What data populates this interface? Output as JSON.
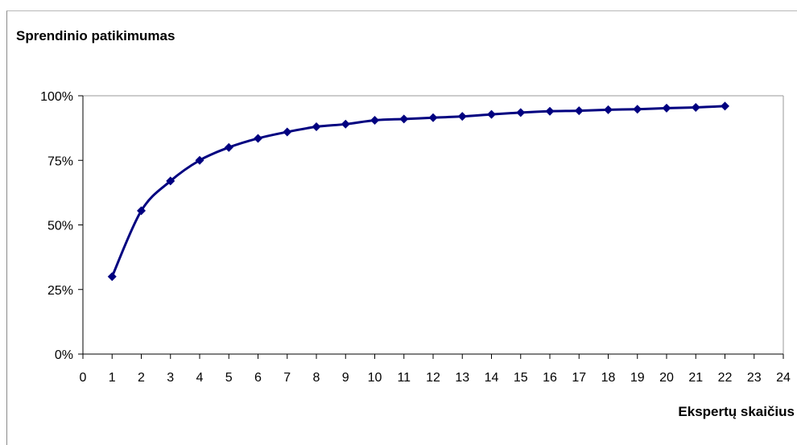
{
  "chart_data": {
    "type": "line",
    "title": "Sprendinio patikimumas",
    "xlabel": "Ekspertų skaičius",
    "ylabel": "",
    "x_ticks": [
      "0",
      "1",
      "2",
      "3",
      "4",
      "5",
      "6",
      "7",
      "8",
      "9",
      "10",
      "11",
      "12",
      "13",
      "14",
      "15",
      "16",
      "17",
      "18",
      "19",
      "20",
      "21",
      "22",
      "23",
      "24"
    ],
    "y_ticks": [
      "0%",
      "25%",
      "50%",
      "75%",
      "100%"
    ],
    "xlim": [
      0,
      24
    ],
    "ylim": [
      0,
      100
    ],
    "grid": false,
    "marker": "diamond",
    "color": "#000080",
    "series": [
      {
        "x": [
          1,
          2,
          3,
          4,
          5,
          6,
          7,
          8,
          9,
          10,
          11,
          12,
          13,
          14,
          15,
          16,
          17,
          18,
          19,
          20,
          21,
          22
        ],
        "values": [
          30,
          55.5,
          67,
          75,
          80,
          83.5,
          86,
          88,
          89,
          90.5,
          91,
          91.5,
          92,
          92.8,
          93.5,
          94,
          94.2,
          94.6,
          94.8,
          95.2,
          95.5,
          96
        ]
      }
    ]
  }
}
